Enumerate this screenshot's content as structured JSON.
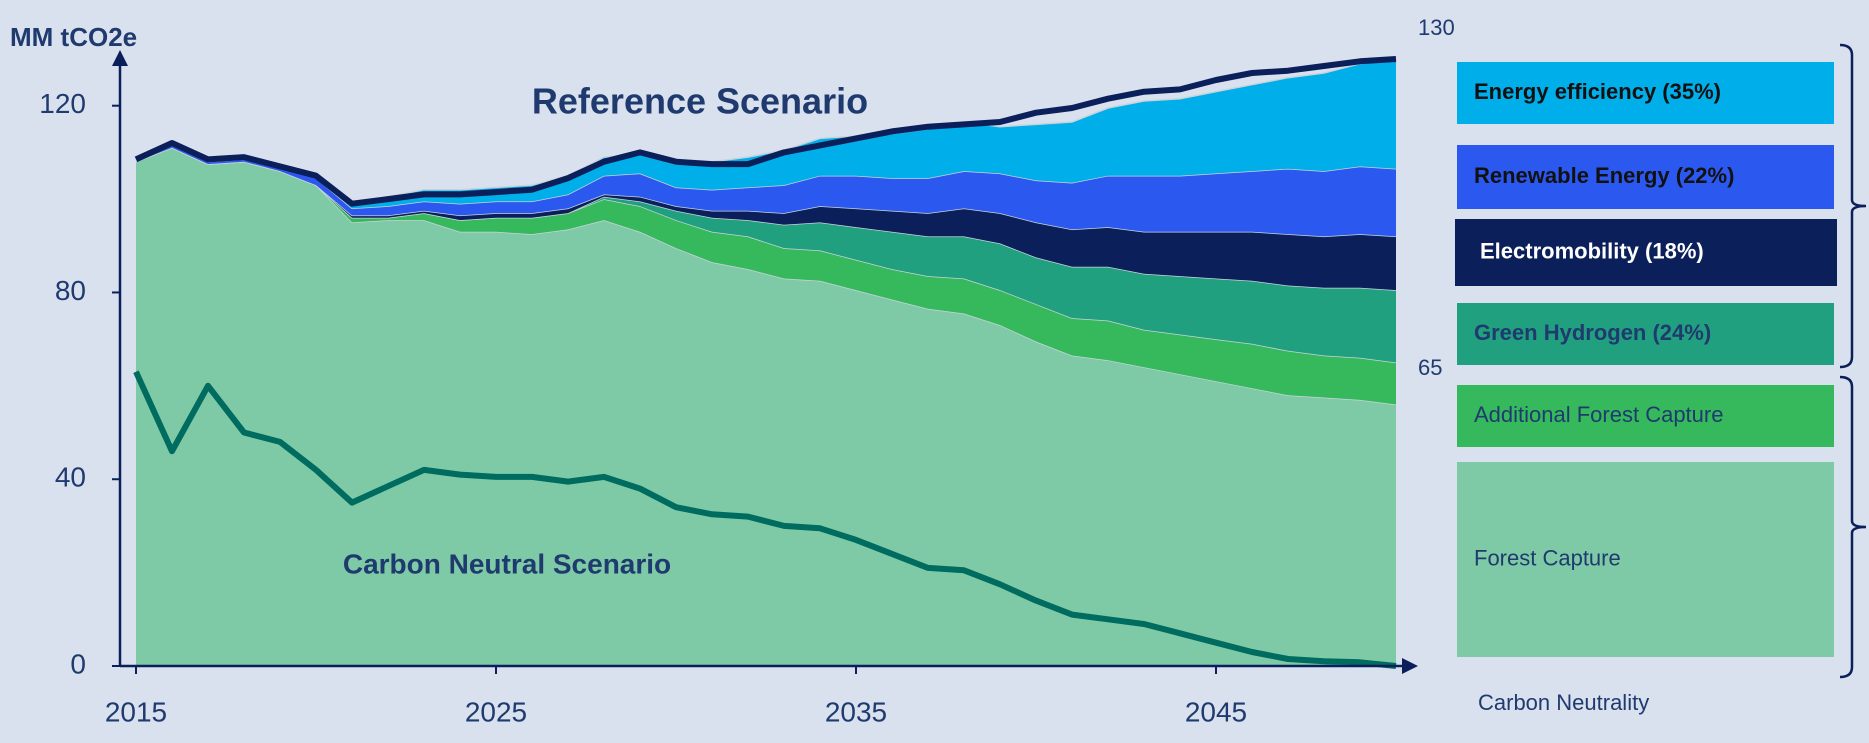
{
  "chart_data": {
    "type": "stacked_area",
    "title": "Reference Scenario",
    "y_label": "MM tCO2e",
    "x": [
      2015,
      2016,
      2017,
      2018,
      2019,
      2020,
      2021,
      2022,
      2023,
      2024,
      2025,
      2026,
      2027,
      2028,
      2029,
      2030,
      2031,
      2032,
      2033,
      2034,
      2035,
      2036,
      2037,
      2038,
      2039,
      2040,
      2041,
      2042,
      2043,
      2044,
      2045,
      2046,
      2047,
      2048,
      2049,
      2050
    ],
    "xlim": [
      2015,
      2050
    ],
    "xticks": [
      2015,
      2025,
      2035,
      2045
    ],
    "ylim": [
      0,
      130
    ],
    "yticks": [
      0,
      40,
      80,
      120
    ],
    "series": [
      {
        "name": "Forest Capture",
        "color": "#7fcaa6",
        "values": [
          108,
          111,
          107.5,
          108,
          106,
          103,
          95,
          95.5,
          95.5,
          93,
          93,
          92.5,
          93.5,
          95.5,
          93,
          89.5,
          86.5,
          85,
          83,
          82.5,
          80.5,
          78.5,
          76.5,
          75.5,
          73,
          69.5,
          66.5,
          65.5,
          64,
          62.5,
          61,
          59.5,
          58,
          57.5,
          57,
          56
        ]
      },
      {
        "name": "Additional Forest Capture",
        "color": "#35b95c",
        "values": [
          0,
          0,
          0,
          0,
          0,
          0,
          1,
          0.5,
          1.5,
          2.5,
          3,
          3.5,
          3.5,
          4.5,
          5.5,
          6,
          6.5,
          7,
          6.5,
          6.5,
          6.5,
          6.5,
          7,
          7.5,
          7.5,
          8,
          8,
          8.5,
          8,
          8.5,
          9,
          9.5,
          9.5,
          9,
          9,
          9
        ]
      },
      {
        "name": "Green Hydrogen (24%)",
        "color": "#21a07f",
        "values": [
          0,
          0,
          0,
          0,
          0,
          0,
          0,
          0,
          0,
          0,
          0,
          0,
          0,
          0.5,
          1,
          2,
          3,
          3.5,
          5,
          6,
          7,
          8,
          8.5,
          9,
          10,
          10,
          11,
          11.5,
          12,
          12.5,
          13,
          13.5,
          14,
          14.5,
          15,
          15.5
        ]
      },
      {
        "name": "Electromobility (18%)",
        "color": "#0b1f5a",
        "values": [
          0,
          0,
          0,
          0,
          0,
          0,
          0.5,
          0.5,
          0.5,
          1,
          1,
          1,
          1,
          0.5,
          1,
          1,
          1.5,
          2,
          2.5,
          3.5,
          4,
          4.5,
          5,
          6,
          6.5,
          7.5,
          8,
          8.5,
          9,
          9.5,
          10,
          10.5,
          11,
          11,
          11.5,
          11.5
        ]
      },
      {
        "name": "Renewable Energy (22%)",
        "color": "#2b59f0",
        "values": [
          0,
          0.5,
          0.5,
          0.5,
          1,
          1.5,
          1.5,
          2,
          2,
          2.5,
          2.5,
          2.5,
          3,
          4,
          5,
          4,
          4.5,
          5,
          6,
          6.5,
          7,
          7,
          7.5,
          8,
          8.5,
          9,
          10,
          11,
          12,
          12,
          12.5,
          13,
          14,
          14,
          14.5,
          14.5
        ]
      },
      {
        "name": "Energy efficiency (35%)",
        "color": "#00aee9",
        "values": [
          0,
          0.5,
          0.5,
          0.5,
          0.5,
          0.5,
          1,
          2,
          2.5,
          3,
          3,
          3.5,
          4,
          4,
          4,
          5,
          6,
          6.5,
          7.5,
          8,
          8.5,
          9.5,
          10.5,
          10.5,
          10,
          12,
          13,
          14.5,
          16,
          16.5,
          17.5,
          18.5,
          19.5,
          21,
          22,
          23.5
        ]
      }
    ],
    "lines": [
      {
        "name": "Reference Scenario",
        "color": "#0b1f5a",
        "values": [
          108.5,
          112,
          108.5,
          109,
          107,
          105,
          99,
          100,
          101,
          101,
          101.5,
          102,
          104.5,
          108,
          110,
          108,
          107.5,
          107.5,
          110,
          111.5,
          113,
          114.5,
          115.5,
          116,
          116.5,
          118.5,
          119.5,
          121.5,
          123,
          123.5,
          125.5,
          127,
          127.5,
          128.5,
          129.5,
          130
        ]
      },
      {
        "name": "Carbon Neutral Scenario",
        "color": "#006b5f",
        "values": [
          63,
          46,
          60,
          50,
          48,
          42,
          35,
          38.5,
          42,
          41,
          40.5,
          40.5,
          39.5,
          40.5,
          38,
          34,
          32.5,
          32,
          30,
          29.5,
          27,
          24,
          21,
          20.5,
          17.5,
          14,
          11,
          10,
          9,
          7,
          5,
          3,
          1.5,
          1,
          0.8,
          0
        ]
      }
    ],
    "bracket_labels": [
      130,
      65
    ],
    "footer_label": "Carbon Neutrality"
  }
}
